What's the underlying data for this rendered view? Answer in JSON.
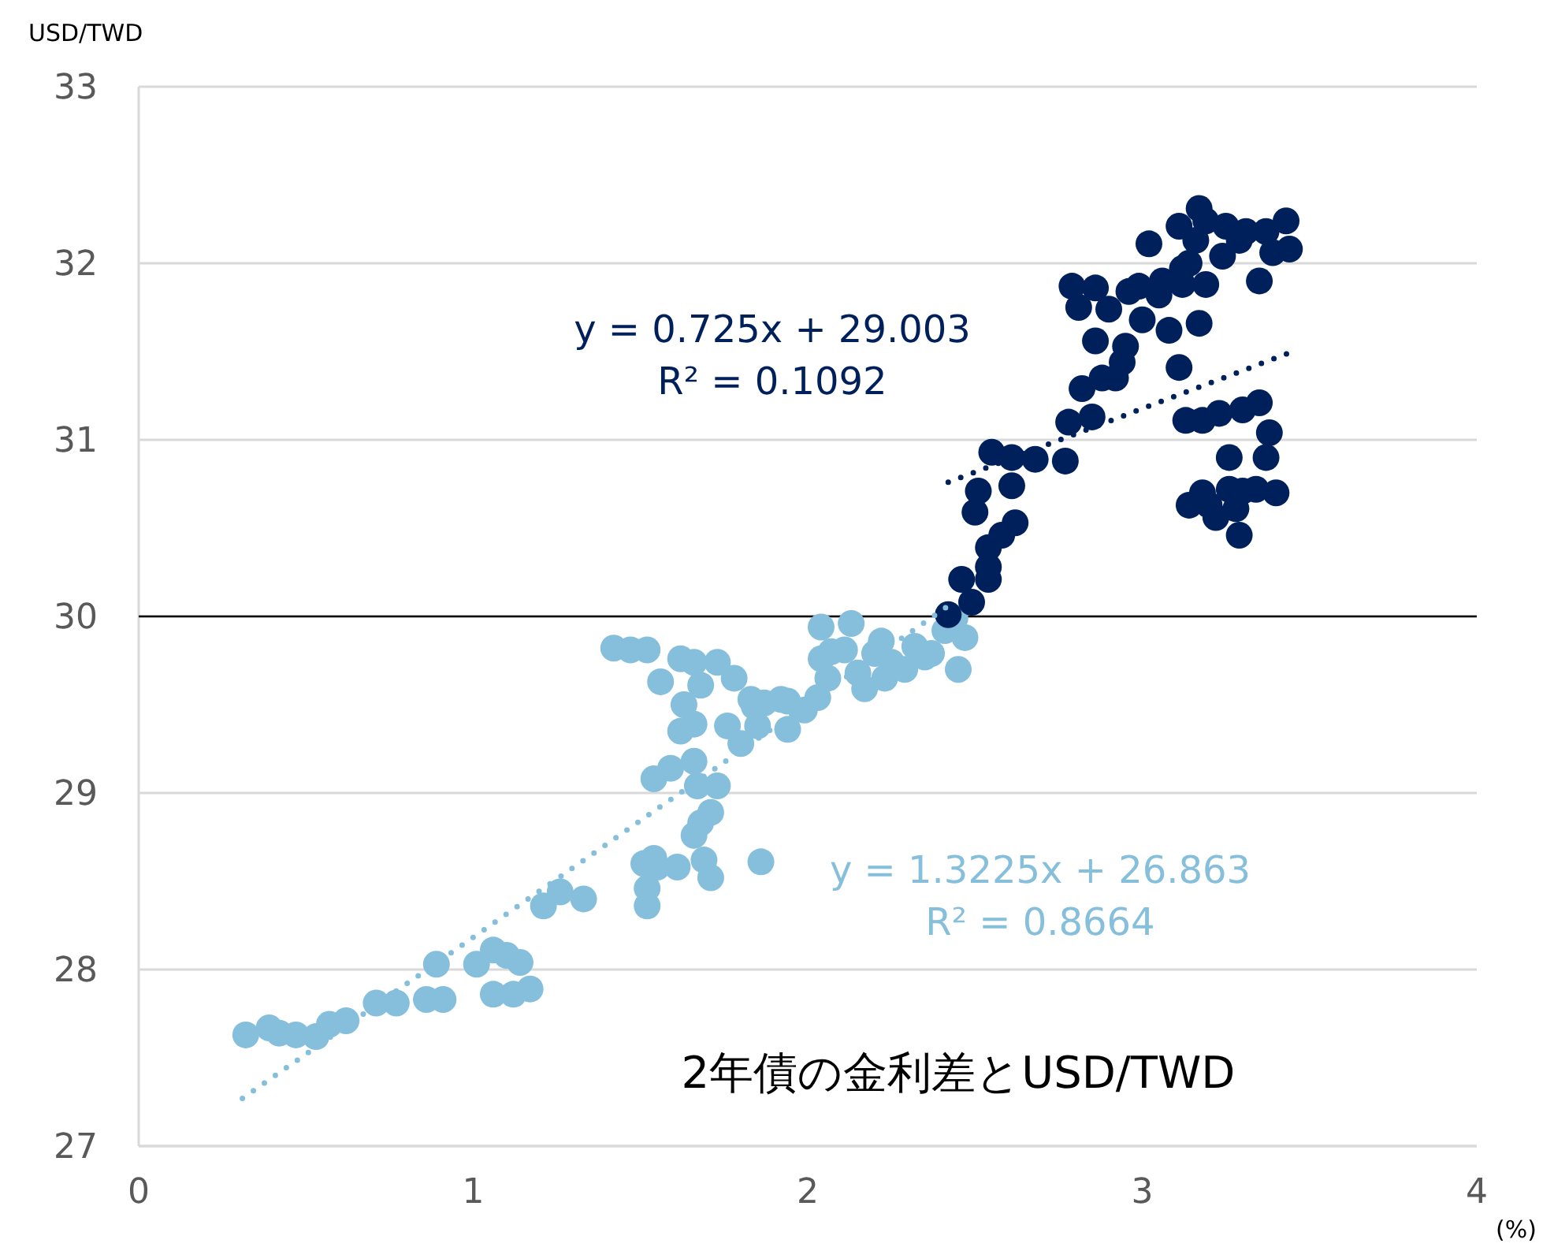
{
  "chart_data": {
    "type": "scatter",
    "title": "2年債の金利差とUSD/TWD",
    "xlabel": "(%)",
    "ylabel": "USD/TWD",
    "xlim": [
      0,
      4
    ],
    "xticks": [
      0,
      1,
      2,
      3,
      4
    ],
    "ylim": [
      27,
      33
    ],
    "yticks": [
      27,
      28,
      29,
      30,
      31,
      32,
      33
    ],
    "grid": "y",
    "ref_lines": [
      {
        "axis": "y",
        "value": 30,
        "color": "#000000"
      }
    ],
    "annotations": [
      "y = 0.725x + 29.003",
      "R² = 0.1092",
      "y = 1.3225x + 26.863",
      "R² = 0.8664"
    ],
    "series": [
      {
        "marker": "circle",
        "color": "#86bfdb",
        "x": [
          0.32,
          0.39,
          0.42,
          0.47,
          0.53,
          0.57,
          0.62,
          0.71,
          0.77,
          0.86,
          0.91,
          0.89,
          1.01,
          1.06,
          1.1,
          1.14,
          1.12,
          1.17,
          1.06,
          1.21,
          1.26,
          1.33,
          1.42,
          1.47,
          1.52,
          1.56,
          1.62,
          1.66,
          1.68,
          1.63,
          1.66,
          1.62,
          1.54,
          1.59,
          1.66,
          1.67,
          1.51,
          1.52,
          1.54,
          1.55,
          1.52,
          1.66,
          1.68,
          1.69,
          1.71,
          1.73,
          1.76,
          1.8,
          1.83,
          1.85,
          1.87,
          1.92,
          1.99,
          2.03,
          2.04,
          2.11,
          2.15,
          2.2,
          2.22,
          2.25,
          2.29,
          2.32,
          2.37,
          2.41,
          2.44,
          2.47,
          2.04,
          2.13,
          1.94,
          1.86,
          1.61,
          1.84,
          2.17,
          2.23,
          2.07,
          2.35,
          1.73,
          2.06,
          2.45,
          1.71,
          1.78,
          1.94
        ],
        "values": [
          27.63,
          27.67,
          27.64,
          27.63,
          27.62,
          27.69,
          27.71,
          27.81,
          27.81,
          27.83,
          27.83,
          28.03,
          28.03,
          28.11,
          28.08,
          28.04,
          27.86,
          27.89,
          27.86,
          28.36,
          28.44,
          28.4,
          29.82,
          29.81,
          29.81,
          29.63,
          29.76,
          29.74,
          29.61,
          29.5,
          29.39,
          29.35,
          29.08,
          29.14,
          29.18,
          29.04,
          28.6,
          28.46,
          28.63,
          28.58,
          28.36,
          28.76,
          28.83,
          28.62,
          28.89,
          29.04,
          29.38,
          29.28,
          29.53,
          29.38,
          29.51,
          29.53,
          29.47,
          29.54,
          29.76,
          29.81,
          29.68,
          29.79,
          29.86,
          29.74,
          29.7,
          29.83,
          29.79,
          29.92,
          29.99,
          29.88,
          29.94,
          29.96,
          29.36,
          28.61,
          28.58,
          29.49,
          29.59,
          29.65,
          29.8,
          29.77,
          29.74,
          29.65,
          29.7,
          28.52,
          29.65,
          29.52
        ]
      },
      {
        "marker": "circle",
        "color": "#00205b",
        "x": [
          2.42,
          2.46,
          2.49,
          2.54,
          2.54,
          2.54,
          2.58,
          2.62,
          2.5,
          2.51,
          2.55,
          2.61,
          2.61,
          2.68,
          2.77,
          2.78,
          2.85,
          2.82,
          2.88,
          2.92,
          2.94,
          2.95,
          2.86,
          2.79,
          2.86,
          2.81,
          2.9,
          2.96,
          2.99,
          3.0,
          3.02,
          3.05,
          3.06,
          3.08,
          3.11,
          3.12,
          3.14,
          3.12,
          3.19,
          3.17,
          3.11,
          3.17,
          3.19,
          3.16,
          3.24,
          3.25,
          3.29,
          3.31,
          3.35,
          3.37,
          3.39,
          3.43,
          3.44,
          3.13,
          3.18,
          3.23,
          3.3,
          3.35,
          3.26,
          3.38,
          3.37,
          3.14,
          3.18,
          3.2,
          3.22,
          3.26,
          3.3,
          3.34,
          3.4,
          3.29,
          3.28
        ],
        "values": [
          30.01,
          30.21,
          30.08,
          30.21,
          30.28,
          30.39,
          30.46,
          30.53,
          30.59,
          30.71,
          30.93,
          30.9,
          30.74,
          30.89,
          30.88,
          31.1,
          31.13,
          31.29,
          31.35,
          31.35,
          31.44,
          31.53,
          31.56,
          31.87,
          31.86,
          31.75,
          31.74,
          31.84,
          31.87,
          31.68,
          32.11,
          31.82,
          31.9,
          31.62,
          31.41,
          31.97,
          32.0,
          31.88,
          31.88,
          31.66,
          32.21,
          32.31,
          32.24,
          32.13,
          32.04,
          32.21,
          32.13,
          32.18,
          31.9,
          32.18,
          32.06,
          32.24,
          32.08,
          31.11,
          31.11,
          31.15,
          31.17,
          31.21,
          30.9,
          31.04,
          30.9,
          30.63,
          30.7,
          30.63,
          30.56,
          30.72,
          30.71,
          30.72,
          30.7,
          30.46,
          30.61
        ]
      },
      {
        "type": "line",
        "color": "#86bfdb",
        "line_style": "dotted",
        "x": [
          0.31,
          2.42
        ],
        "values": [
          27.27,
          30.06
        ]
      },
      {
        "type": "line",
        "color": "#00205b",
        "line_style": "dotted",
        "x": [
          2.42,
          3.45
        ],
        "values": [
          30.76,
          31.5
        ]
      }
    ]
  }
}
